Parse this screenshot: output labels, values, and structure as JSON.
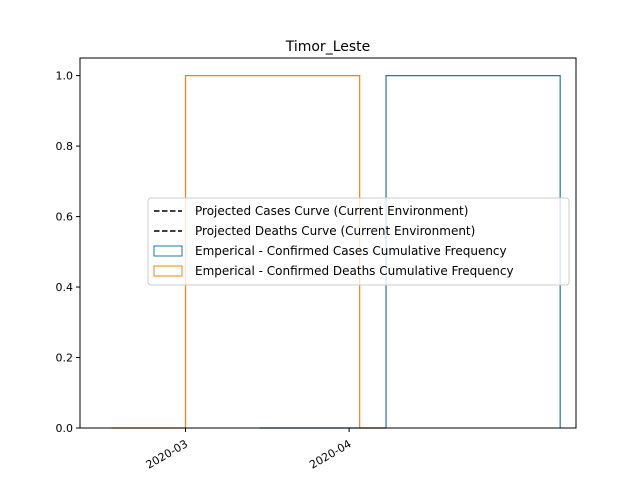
{
  "chart_data": {
    "type": "step-histogram",
    "title": "Timor_Leste",
    "xlabel": "",
    "ylabel": "",
    "x_axis": "date",
    "xlim": [
      "2020-02-10",
      "2020-05-14"
    ],
    "ylim": [
      0,
      1.05
    ],
    "x_ticks": [
      "2020-03-01",
      "2020-04-01"
    ],
    "x_tick_labels": [
      "2020-03",
      "2020-04"
    ],
    "y_ticks": [
      0.0,
      0.2,
      0.4,
      0.6,
      0.8,
      1.0
    ],
    "y_tick_labels": [
      "0.0",
      "0.2",
      "0.4",
      "0.6",
      "0.8",
      "1.0"
    ],
    "grid": false,
    "legend_position": "center-right",
    "series": [
      {
        "name": "Projected Cases Curve (Current Environment)",
        "kind": "line",
        "style": "dashed",
        "color": "#000000",
        "points": []
      },
      {
        "name": "Projected Deaths Curve (Current Environment)",
        "kind": "line",
        "style": "dashed",
        "color": "#000000",
        "points": []
      },
      {
        "name": "Emperical - Confirmed Cases Cumulative Frequency",
        "kind": "step",
        "color": "#1f77b4",
        "points": [
          {
            "x": "2020-03-15",
            "y": 0
          },
          {
            "x": "2020-04-08",
            "y": 0
          },
          {
            "x": "2020-04-08",
            "y": 1
          },
          {
            "x": "2020-05-11",
            "y": 1
          },
          {
            "x": "2020-05-11",
            "y": 0
          }
        ]
      },
      {
        "name": "Emperical - Confirmed Deaths Cumulative Frequency",
        "kind": "step",
        "color": "#ff7f0e",
        "points": [
          {
            "x": "2020-02-16",
            "y": 0
          },
          {
            "x": "2020-03-01",
            "y": 0
          },
          {
            "x": "2020-03-01",
            "y": 1
          },
          {
            "x": "2020-04-03",
            "y": 1
          },
          {
            "x": "2020-04-03",
            "y": 0
          },
          {
            "x": "2020-04-08",
            "y": 0
          }
        ]
      }
    ]
  }
}
